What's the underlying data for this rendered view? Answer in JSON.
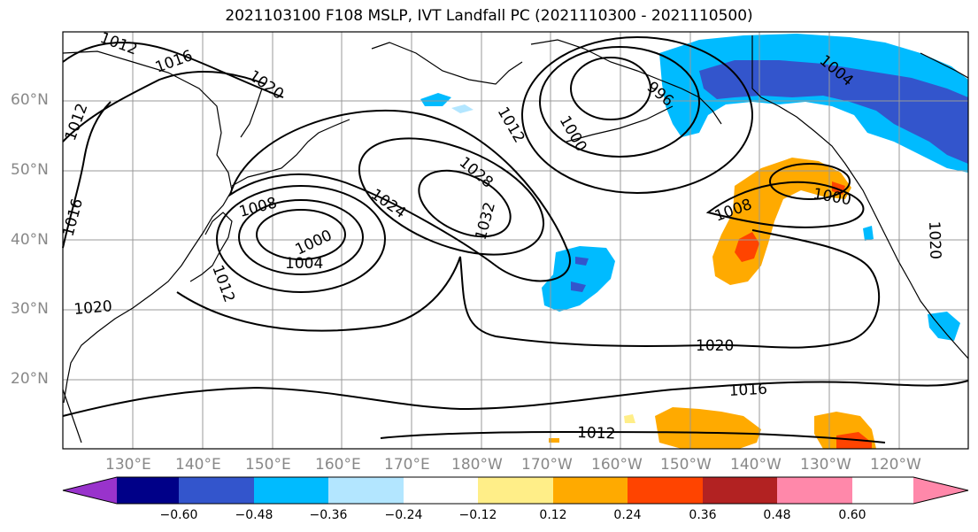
{
  "title": "2021103100 F108 MSLP, IVT Landfall PC (2021110300 - 2021110500)",
  "lat_labels": [
    "60°N",
    "50°N",
    "40°N",
    "30°N",
    "20°N"
  ],
  "lon_labels": [
    "130°E",
    "140°E",
    "150°E",
    "160°E",
    "170°E",
    "180°W",
    "170°W",
    "160°W",
    "150°W",
    "140°W",
    "130°W",
    "120°W"
  ],
  "contour_labels": {
    "c1012_a": "1012",
    "c1016_a": "1016",
    "c1020_a": "1020",
    "c1012_b": "1012",
    "c1016_b": "1016",
    "c1008_a": "1008",
    "c1000_a": "1000",
    "c1004_a": "1004",
    "c1012_c": "1012",
    "c1020_b": "1020",
    "c1024": "1024",
    "c1028": "1028",
    "c1032": "1032",
    "c1012_d": "1012",
    "c1000_b": "1000",
    "c996": "996",
    "c1004_b": "1004",
    "c1008_b": "1008",
    "c1000_c": "1000",
    "c1020_c": "1020",
    "c1020_d": "1020",
    "c1016_c": "1016",
    "c1012_e": "1012"
  },
  "colorbar": {
    "ticks": [
      "−0.60",
      "−0.48",
      "−0.36",
      "−0.24",
      "−0.12",
      "0.12",
      "0.24",
      "0.36",
      "0.48",
      "0.60"
    ],
    "colors": [
      "#9933cc",
      "#000088",
      "#3355cc",
      "#00bbff",
      "#b3e6ff",
      "#ffffff",
      "#ffee88",
      "#ffaa00",
      "#ff4400",
      "#b22222",
      "#ff88aa"
    ]
  }
}
